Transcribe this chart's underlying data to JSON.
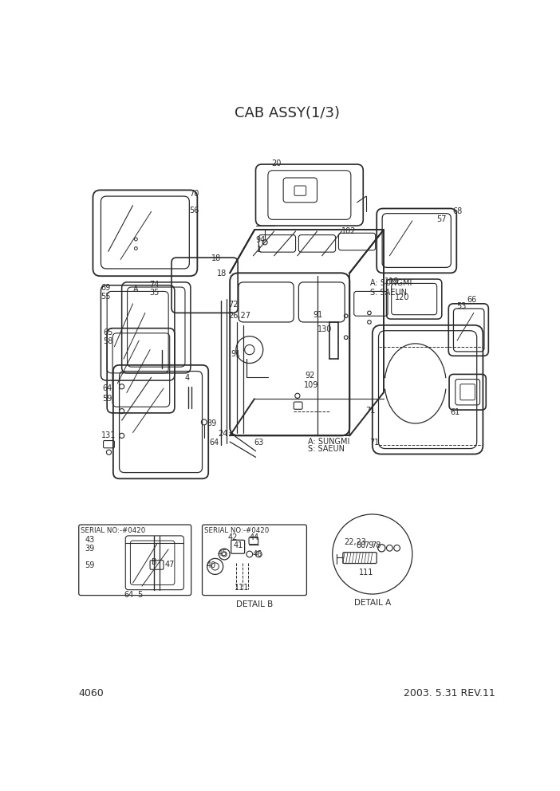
{
  "title": "CAB ASSY(1/3)",
  "page_number": "4060",
  "revision": "2003. 5.31 REV.11",
  "bg": "#ffffff",
  "lc": "#2a2a2a",
  "title_fs": 13,
  "label_fs": 7,
  "footer_fs": 9
}
